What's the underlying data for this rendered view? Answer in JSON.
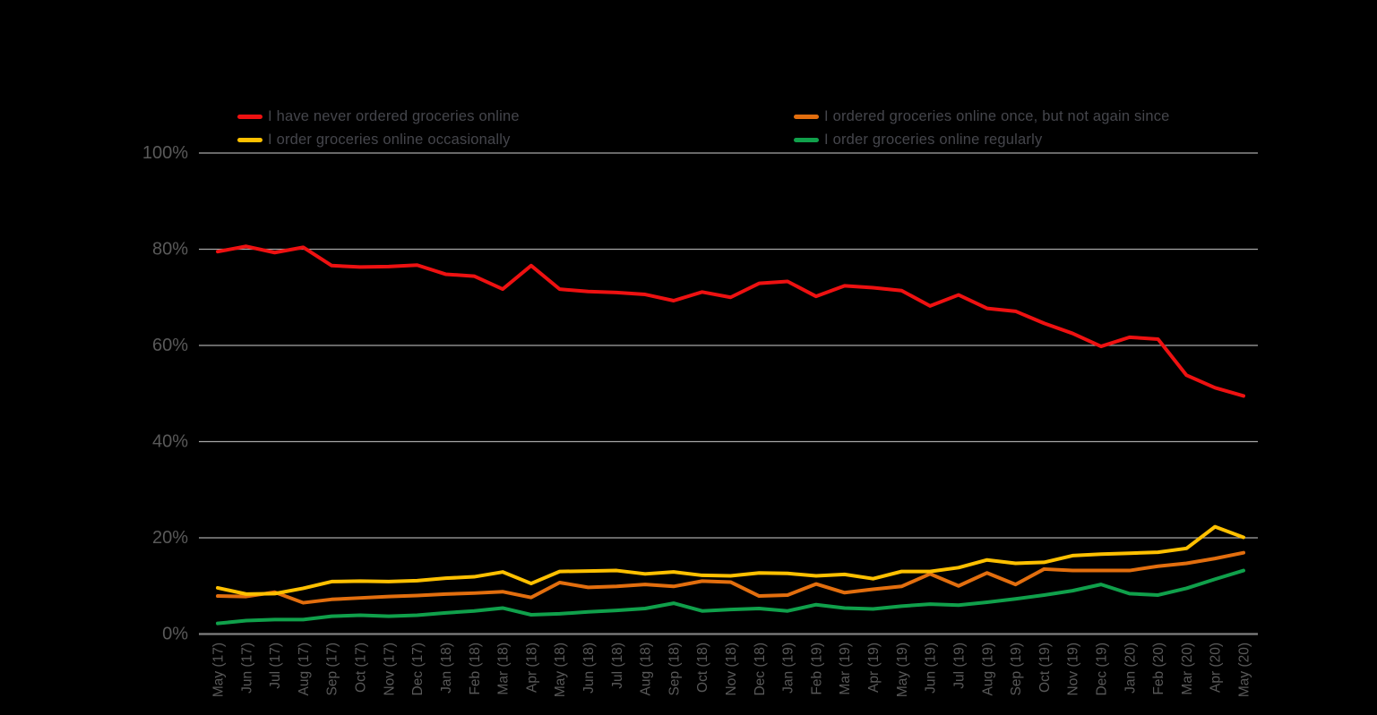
{
  "page": {
    "background": "#000000",
    "title": ""
  },
  "style": {
    "tick_color": "#595959",
    "legend_text_color": "#45464c",
    "gridline_color": "#a6a6a6",
    "axis_line_color": "#7f7f7f"
  },
  "chart_data": {
    "type": "line",
    "title": "",
    "xlabel": "",
    "ylabel": "",
    "ylim": [
      0,
      100
    ],
    "grid": true,
    "legend_position": "top",
    "x_label_rotation": -90,
    "y_ticks": [
      {
        "value": 0,
        "label": "0%"
      },
      {
        "value": 20,
        "label": "20%"
      },
      {
        "value": 40,
        "label": "40%"
      },
      {
        "value": 60,
        "label": "60%"
      },
      {
        "value": 80,
        "label": "80%"
      },
      {
        "value": 100,
        "label": "100%"
      }
    ],
    "x": [
      "May (17)",
      "Jun (17)",
      "Jul (17)",
      "Aug (17)",
      "Sep (17)",
      "Oct (17)",
      "Nov (17)",
      "Dec (17)",
      "Jan (18)",
      "Feb (18)",
      "Mar (18)",
      "Apr (18)",
      "May (18)",
      "Jun (18)",
      "Jul (18)",
      "Aug (18)",
      "Sep (18)",
      "Oct (18)",
      "Nov (18)",
      "Dec (18)",
      "Jan (19)",
      "Feb (19)",
      "Mar (19)",
      "Apr (19)",
      "May (19)",
      "Jun (19)",
      "Jul (19)",
      "Aug (19)",
      "Sep (19)",
      "Oct (19)",
      "Nov (19)",
      "Dec (19)",
      "Jan (20)",
      "Feb (20)",
      "Mar (20)",
      "Apr (20)",
      "May (20)"
    ],
    "series": [
      {
        "name": "I have never ordered groceries online",
        "key": "never-ordered",
        "color": "#ee1111",
        "values": [
          79.5,
          80.6,
          79.3,
          80.4,
          76.6,
          76.3,
          76.4,
          76.7,
          74.8,
          74.4,
          71.7,
          76.6,
          71.7,
          71.2,
          71.0,
          70.6,
          69.3,
          71.1,
          70.0,
          72.9,
          73.3,
          70.2,
          72.4,
          72.0,
          71.4,
          68.2,
          70.5,
          67.7,
          67.1,
          64.6,
          62.5,
          59.8,
          61.7,
          61.3,
          53.8,
          51.2,
          49.5
        ]
      },
      {
        "name": "I ordered groceries online once, but not again since",
        "key": "ordered-once-not-again",
        "color": "#e26e0e",
        "values": [
          7.9,
          7.8,
          8.7,
          6.5,
          7.2,
          7.5,
          7.8,
          8.0,
          8.3,
          8.5,
          8.8,
          7.6,
          10.7,
          9.7,
          9.9,
          10.3,
          9.9,
          11.0,
          10.8,
          7.9,
          8.1,
          10.4,
          8.6,
          9.3,
          9.9,
          12.5,
          10.0,
          12.7,
          10.3,
          13.5,
          13.2,
          13.2,
          13.2,
          14.1,
          14.7,
          15.7,
          16.9
        ]
      },
      {
        "name": "I order groceries online occasionally",
        "key": "order-occasionally",
        "color": "#ffc000",
        "values": [
          9.6,
          8.3,
          8.4,
          9.5,
          10.9,
          11.0,
          10.9,
          11.1,
          11.6,
          11.9,
          12.9,
          10.5,
          13.0,
          13.1,
          13.2,
          12.5,
          12.9,
          12.2,
          12.1,
          12.7,
          12.6,
          12.1,
          12.4,
          11.5,
          13.0,
          13.0,
          13.8,
          15.4,
          14.7,
          14.9,
          16.3,
          16.6,
          16.8,
          17.0,
          17.8,
          22.3,
          20.1
        ]
      },
      {
        "name": "I order groceries online regularly",
        "key": "order-regularly",
        "color": "#10a04b",
        "values": [
          2.2,
          2.8,
          3.0,
          3.0,
          3.7,
          3.9,
          3.7,
          3.9,
          4.4,
          4.8,
          5.4,
          4.0,
          4.2,
          4.6,
          4.9,
          5.3,
          6.4,
          4.8,
          5.1,
          5.3,
          4.8,
          6.1,
          5.4,
          5.2,
          5.8,
          6.2,
          6.0,
          6.6,
          7.3,
          8.1,
          9.0,
          10.3,
          8.4,
          8.1,
          9.5,
          11.4,
          13.2
        ]
      }
    ]
  }
}
